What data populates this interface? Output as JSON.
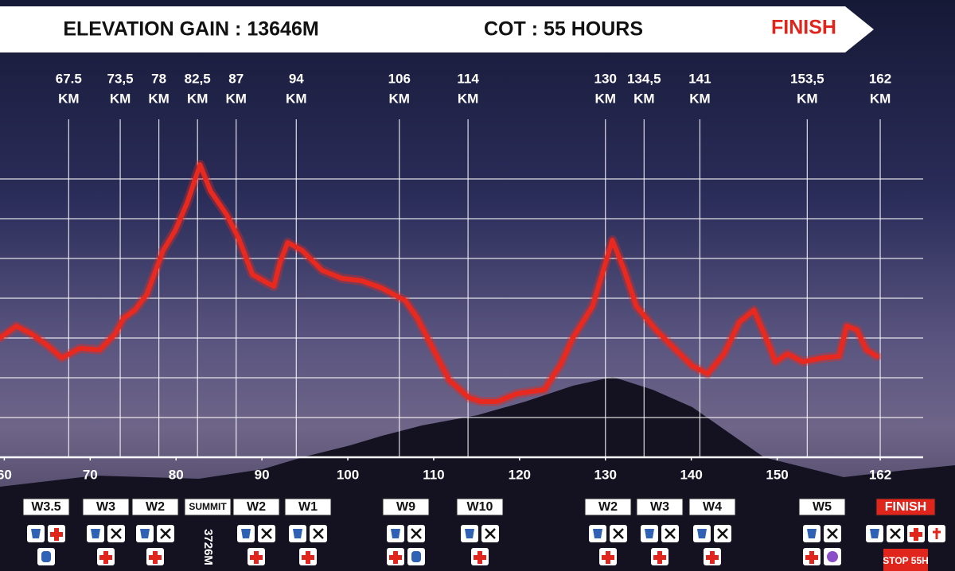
{
  "header": {
    "elevation_gain": "ELEVATION GAIN : 13646M",
    "cot": "COT : 55 HOURS",
    "finish": "FINISH"
  },
  "chart_data": {
    "type": "line",
    "color": "#e8291f",
    "x": [
      59.5,
      61.4,
      63.2,
      65.1,
      66.7,
      68.8,
      71.1,
      72.9,
      73.9,
      75.2,
      76.6,
      78.5,
      79.9,
      81.3,
      82.8,
      84.0,
      85.9,
      87.3,
      88.9,
      90.5,
      91.4,
      92.1,
      93.0,
      94.7,
      97.0,
      99.3,
      101.6,
      103.9,
      106.7,
      108.1,
      110.0,
      111.8,
      114.1,
      115.5,
      117.4,
      119.7,
      122.9,
      124.8,
      126.2,
      128.5,
      130.8,
      132.2,
      133.6,
      135.9,
      138.2,
      140.1,
      141.9,
      143.8,
      145.6,
      147.3,
      148.9,
      149.8,
      151.2,
      153.0,
      155.3,
      157.2,
      158.1,
      159.3,
      160.4,
      161.6
    ],
    "values": [
      1500,
      1650,
      1550,
      1400,
      1250,
      1370,
      1350,
      1550,
      1750,
      1850,
      2050,
      2600,
      2850,
      3200,
      3680,
      3350,
      3050,
      2750,
      2300,
      2200,
      2150,
      2450,
      2700,
      2600,
      2350,
      2250,
      2220,
      2130,
      1970,
      1750,
      1350,
      970,
      750,
      700,
      700,
      800,
      850,
      1170,
      1500,
      1900,
      2730,
      2350,
      1900,
      1600,
      1350,
      1150,
      1050,
      1300,
      1700,
      1850,
      1450,
      1200,
      1300,
      1200,
      1250,
      1270,
      1650,
      1600,
      1350,
      1270
    ],
    "xlim": [
      59.5,
      167
    ],
    "ylim": [
      0,
      4250
    ],
    "xticks": [
      60,
      70,
      80,
      90,
      100,
      110,
      120,
      130,
      140,
      150,
      162
    ],
    "yticks": [
      0,
      500,
      1000,
      1500,
      2000,
      2500,
      3000,
      3500
    ],
    "grid": true,
    "checkpoints": [
      67.5,
      {
        "value": 73.5,
        "label": "73,5"
      },
      78,
      {
        "value": 82.5,
        "label": "82,5"
      },
      87,
      94,
      106,
      114,
      130,
      {
        "value": 134.5,
        "label": "134,5"
      },
      141,
      {
        "value": 153.5,
        "label": "153,5"
      },
      162
    ],
    "checkpoint_unit": "KM"
  },
  "stations": [
    "W3.5",
    "W3",
    "W2",
    "SUMMIT",
    "W2",
    "W1",
    "W9",
    "W10",
    "W2",
    "W3",
    "W4",
    "W5",
    "FINISH"
  ],
  "summit_elevation": "3726M",
  "stop_label": "STOP 55H"
}
